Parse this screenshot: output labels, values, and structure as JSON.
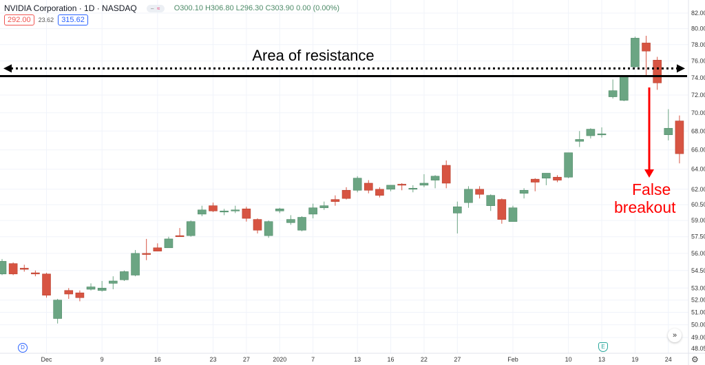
{
  "header": {
    "symbol": "NVIDIA Corporation · 1D · NASDAQ",
    "ohlc": "O300.10 H306.80 L296.30 C303.90 0.00 (0.00%)",
    "bid": "292.00",
    "spread": "23.62",
    "ask": "315.62"
  },
  "markers": {
    "dividend": "D",
    "earnings": "E"
  },
  "controls": {
    "scroll_right": "»",
    "settings": "⚙"
  },
  "colors": {
    "up": "#6ba583",
    "down": "#d75442",
    "annotation": "#000000",
    "breakout": "#ff0000",
    "grid": "#f0f3fa"
  },
  "chart_data": {
    "type": "candlestick",
    "title": "",
    "yscale": "log",
    "ylim": [
      48.05,
      82.0
    ],
    "grid": true,
    "y_ticks": [
      "82.00",
      "80.00",
      "78.00",
      "76.00",
      "74.00",
      "72.00",
      "70.00",
      "68.00",
      "66.00",
      "64.00",
      "62.00",
      "60.50",
      "59.00",
      "57.50",
      "56.00",
      "54.50",
      "53.00",
      "52.00",
      "51.00",
      "50.00",
      "49.00",
      "48.05"
    ],
    "x_ticks": [
      {
        "label": "Dec",
        "date": "2019-12-02"
      },
      {
        "label": "9",
        "date": "2019-12-09"
      },
      {
        "label": "16",
        "date": "2019-12-16"
      },
      {
        "label": "23",
        "date": "2019-12-23"
      },
      {
        "label": "27",
        "date": "2019-12-27"
      },
      {
        "label": "2020",
        "date": "2020-01-02"
      },
      {
        "label": "7",
        "date": "2020-01-07"
      },
      {
        "label": "13",
        "date": "2020-01-13"
      },
      {
        "label": "16",
        "date": "2020-01-16"
      },
      {
        "label": "22",
        "date": "2020-01-22"
      },
      {
        "label": "27",
        "date": "2020-01-27"
      },
      {
        "label": "Feb",
        "date": "2020-02-03"
      },
      {
        "label": "10",
        "date": "2020-02-10"
      },
      {
        "label": "13",
        "date": "2020-02-13"
      },
      {
        "label": "19",
        "date": "2020-02-19"
      },
      {
        "label": "24",
        "date": "2020-02-24"
      }
    ],
    "candles": [
      [
        "2019-11-25",
        54.2,
        55.5,
        54.1,
        55.3
      ],
      [
        "2019-11-26",
        55.1,
        55.2,
        54.1,
        54.2
      ],
      [
        "2019-11-27",
        54.7,
        55.0,
        54.4,
        54.6
      ],
      [
        "2019-11-29",
        54.3,
        54.5,
        54.0,
        54.2
      ],
      [
        "2019-12-02",
        54.2,
        54.3,
        52.2,
        52.4
      ],
      [
        "2019-12-03",
        50.5,
        52.1,
        50.1,
        52.0
      ],
      [
        "2019-12-04",
        52.8,
        53.0,
        52.1,
        52.5
      ],
      [
        "2019-12-05",
        52.6,
        52.8,
        51.9,
        52.2
      ],
      [
        "2019-12-06",
        52.9,
        53.4,
        52.8,
        53.1
      ],
      [
        "2019-12-09",
        52.8,
        53.6,
        52.7,
        53.0
      ],
      [
        "2019-12-10",
        53.4,
        54.0,
        52.9,
        53.6
      ],
      [
        "2019-12-11",
        53.7,
        54.5,
        53.6,
        54.4
      ],
      [
        "2019-12-12",
        54.1,
        56.3,
        54.0,
        56.0
      ],
      [
        "2019-12-13",
        56.0,
        57.3,
        55.4,
        55.9
      ],
      [
        "2019-12-16",
        56.5,
        56.9,
        56.2,
        56.2
      ],
      [
        "2019-12-17",
        56.5,
        57.5,
        56.5,
        57.3
      ],
      [
        "2019-12-18",
        57.6,
        58.3,
        57.5,
        57.5
      ],
      [
        "2019-12-19",
        57.6,
        59.0,
        57.5,
        58.9
      ],
      [
        "2019-12-20",
        59.6,
        60.4,
        59.4,
        60.0
      ],
      [
        "2019-12-23",
        60.4,
        60.7,
        59.8,
        59.9
      ],
      [
        "2019-12-24",
        59.8,
        60.1,
        59.5,
        59.9
      ],
      [
        "2019-12-26",
        59.9,
        60.4,
        59.7,
        60.0
      ],
      [
        "2019-12-27",
        60.1,
        60.3,
        58.9,
        59.2
      ],
      [
        "2019-12-30",
        59.1,
        59.2,
        57.8,
        58.1
      ],
      [
        "2019-12-31",
        57.6,
        59.0,
        57.4,
        58.9
      ],
      [
        "2020-01-02",
        59.9,
        60.2,
        59.7,
        60.1
      ],
      [
        "2020-01-03",
        58.8,
        59.5,
        58.6,
        59.1
      ],
      [
        "2020-01-06",
        58.1,
        59.4,
        58.0,
        59.3
      ],
      [
        "2020-01-07",
        59.6,
        60.6,
        59.2,
        60.2
      ],
      [
        "2020-01-08",
        60.2,
        60.8,
        60.0,
        60.4
      ],
      [
        "2020-01-09",
        61.0,
        61.4,
        60.4,
        60.8
      ],
      [
        "2020-01-10",
        61.9,
        62.2,
        61.0,
        61.1
      ],
      [
        "2020-01-13",
        61.9,
        63.3,
        61.7,
        63.1
      ],
      [
        "2020-01-14",
        62.6,
        62.9,
        61.6,
        61.9
      ],
      [
        "2020-01-15",
        62.0,
        62.2,
        61.2,
        61.4
      ],
      [
        "2020-01-16",
        62.0,
        62.4,
        61.8,
        62.4
      ],
      [
        "2020-01-17",
        62.5,
        62.6,
        61.9,
        62.4
      ],
      [
        "2020-01-21",
        62.0,
        62.4,
        61.7,
        62.1
      ],
      [
        "2020-01-22",
        62.4,
        63.5,
        62.2,
        62.6
      ],
      [
        "2020-01-23",
        62.9,
        63.4,
        62.1,
        63.3
      ],
      [
        "2020-01-24",
        64.4,
        64.9,
        62.1,
        62.6
      ],
      [
        "2020-01-27",
        59.7,
        60.8,
        57.8,
        60.3
      ],
      [
        "2020-01-28",
        60.7,
        62.3,
        60.2,
        62.0
      ],
      [
        "2020-01-29",
        62.0,
        62.3,
        61.1,
        61.5
      ],
      [
        "2020-01-30",
        60.4,
        61.5,
        59.9,
        61.4
      ],
      [
        "2020-01-31",
        61.0,
        61.1,
        58.7,
        59.1
      ],
      [
        "2020-02-03",
        58.9,
        60.4,
        58.9,
        60.2
      ],
      [
        "2020-02-04",
        61.6,
        62.1,
        61.1,
        61.9
      ],
      [
        "2020-02-05",
        63.0,
        63.1,
        61.8,
        62.7
      ],
      [
        "2020-02-06",
        63.1,
        63.6,
        62.4,
        63.6
      ],
      [
        "2020-02-07",
        63.2,
        63.4,
        62.7,
        62.9
      ],
      [
        "2020-02-10",
        63.2,
        65.7,
        63.1,
        65.7
      ],
      [
        "2020-02-11",
        66.9,
        68.0,
        66.3,
        67.1
      ],
      [
        "2020-02-12",
        67.5,
        68.3,
        67.2,
        68.2
      ],
      [
        "2020-02-13",
        67.6,
        68.4,
        67.3,
        67.7
      ],
      [
        "2020-02-14",
        71.8,
        73.8,
        71.6,
        72.5
      ],
      [
        "2020-02-18",
        71.4,
        74.3,
        71.3,
        74.2
      ],
      [
        "2020-02-19",
        75.3,
        79.0,
        75.2,
        78.8
      ],
      [
        "2020-02-20",
        78.2,
        79.1,
        74.1,
        77.2
      ],
      [
        "2020-02-21",
        76.1,
        76.5,
        72.6,
        73.4
      ],
      [
        "2020-02-24",
        67.6,
        70.4,
        67.0,
        68.3
      ],
      [
        "2020-02-25",
        69.1,
        69.7,
        64.6,
        65.6
      ]
    ],
    "annotations": {
      "resistance_label": "Area of resistance",
      "resistance_level": 74.2,
      "resistance_dotted_level": 75.1,
      "breakout_label_line1": "False",
      "breakout_label_line2": "breakout"
    }
  }
}
